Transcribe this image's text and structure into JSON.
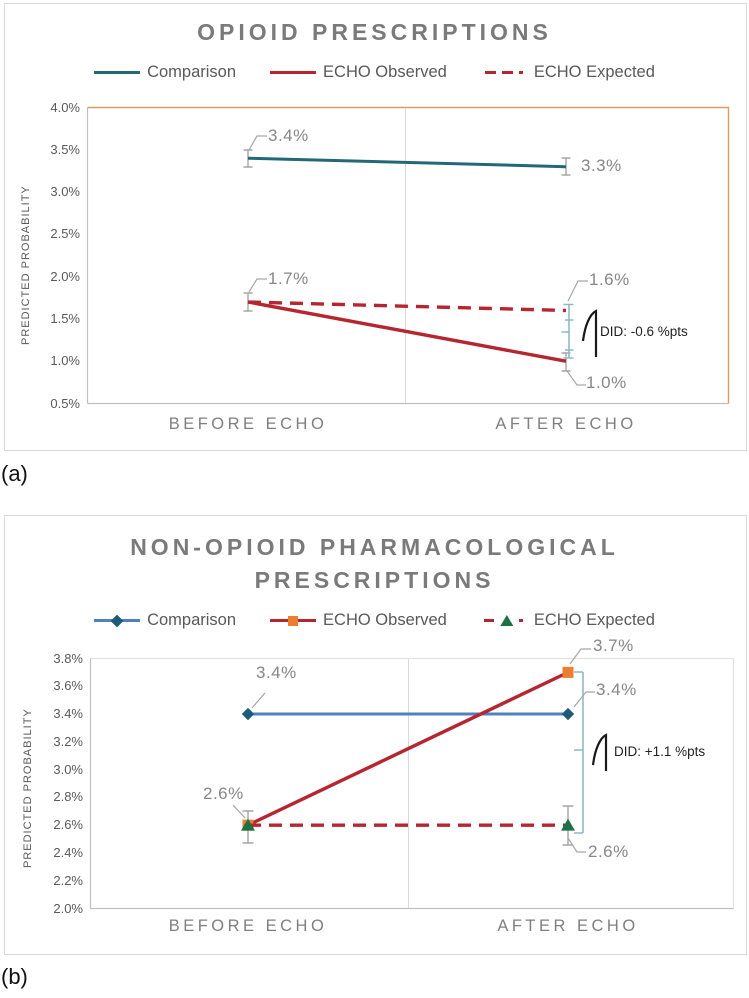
{
  "figure": {
    "panel_a_label": "(a)",
    "panel_b_label": "(b)"
  },
  "chart_data": [
    {
      "type": "line",
      "title": "OPIOID PRESCRIPTIONS",
      "ylabel": "PREDICTED PROBABILITY",
      "categories": [
        "BEFORE ECHO",
        "AFTER ECHO"
      ],
      "y_ticks": [
        "4.0%",
        "3.5%",
        "3.0%",
        "2.5%",
        "2.0%",
        "1.5%",
        "1.0%",
        "0.5%"
      ],
      "ylim": [
        0.5,
        4.0
      ],
      "grid": "single-vertical-divider",
      "legend_position": "top",
      "plot_border_color": "#dc9b63",
      "bracket_color": "#8fb9c9",
      "series": [
        {
          "name": "Comparison",
          "values": [
            3.4,
            3.3
          ],
          "color": "#226879",
          "style": "solid",
          "marker": "none",
          "error_bars": true
        },
        {
          "name": "ECHO Observed",
          "values": [
            1.7,
            1.0
          ],
          "color": "#b52630",
          "style": "solid",
          "marker": "none",
          "error_bars": true
        },
        {
          "name": "ECHO Expected",
          "values": [
            1.7,
            1.6
          ],
          "color": "#b52630",
          "style": "dashed",
          "marker": "none",
          "error_bars": true
        }
      ],
      "point_labels": {
        "comparison_before": "3.4%",
        "comparison_after": "3.3%",
        "observed_before": "1.7%",
        "expected_after": "1.6%",
        "observed_after": "1.0%"
      },
      "annotation": "DID: -0.6 %pts"
    },
    {
      "type": "line",
      "title": "NON-OPIOID PHARMACOLOGICAL PRESCRIPTIONS",
      "ylabel": "PREDICTED PROBABILITY",
      "categories": [
        "BEFORE ECHO",
        "AFTER ECHO"
      ],
      "y_ticks": [
        "3.8%",
        "3.6%",
        "3.4%",
        "3.2%",
        "3.0%",
        "2.8%",
        "2.6%",
        "2.4%",
        "2.2%",
        "2.0%"
      ],
      "ylim": [
        2.0,
        3.8
      ],
      "grid": "single-vertical-divider",
      "legend_position": "top",
      "plot_border_color": "#e2e2e2",
      "bracket_color": "#8fb9c9",
      "series": [
        {
          "name": "Comparison",
          "values": [
            3.4,
            3.4
          ],
          "color": "#4e81bd",
          "style": "solid",
          "marker": "diamond",
          "marker_color": "#1d5b78",
          "error_bars": false
        },
        {
          "name": "ECHO Observed",
          "values": [
            2.6,
            3.7
          ],
          "color": "#b52630",
          "style": "solid",
          "marker": "square",
          "marker_color": "#ed7d31",
          "error_bars": true
        },
        {
          "name": "ECHO Expected",
          "values": [
            2.6,
            2.6
          ],
          "color": "#b52630",
          "style": "dashed",
          "marker": "triangle",
          "marker_color": "#1e7145",
          "error_bars": true
        }
      ],
      "point_labels": {
        "comparison_before": "3.4%",
        "observed_before": "2.6%",
        "observed_after": "3.7%",
        "comparison_after": "3.4%",
        "expected_after": "2.6%"
      },
      "annotation": "DID: +1.1 %pts"
    }
  ]
}
